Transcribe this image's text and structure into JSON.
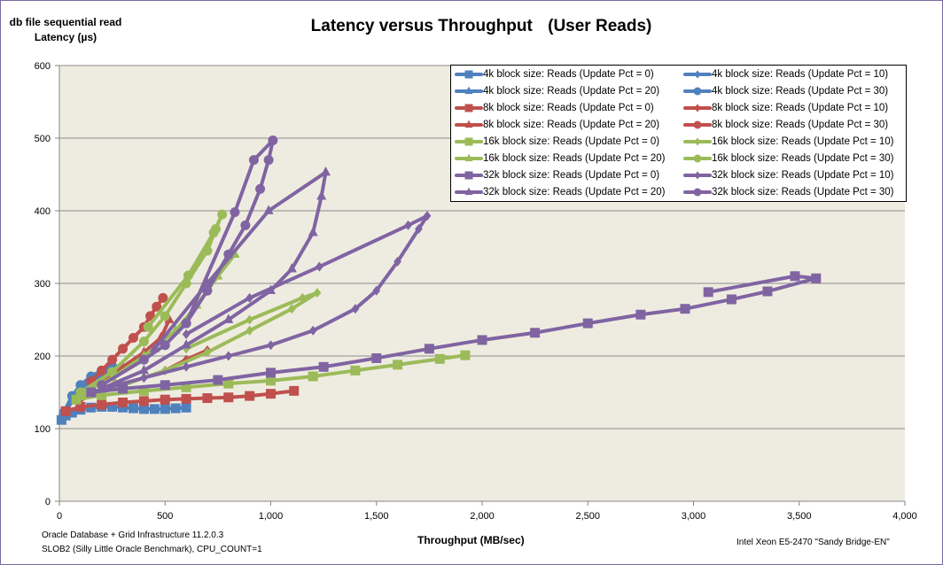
{
  "chart_data": {
    "type": "line",
    "title": "Latency versus Throughput",
    "subtitle": "(User Reads)",
    "ylabel_line1": "db file sequential read",
    "ylabel_line2": "Latency (µs)",
    "xlabel": "Throughput (MB/sec)",
    "xlim": [
      0,
      4000
    ],
    "ylim": [
      0,
      600
    ],
    "xticks": [
      "0",
      "500",
      "1,000",
      "1,500",
      "2,000",
      "2,500",
      "3,000",
      "3,500",
      "4,000"
    ],
    "yticks": [
      "0",
      "100",
      "200",
      "300",
      "400",
      "500",
      "600"
    ],
    "grid": "horizontal",
    "legend_position": "top-right",
    "plot_background": "#eeece1",
    "series": [
      {
        "name": "4k block size: Reads (Update Pct = 0)",
        "color": "#4f81bd",
        "marker": "square",
        "points": [
          [
            10,
            112
          ],
          [
            30,
            118
          ],
          [
            60,
            122
          ],
          [
            100,
            126
          ],
          [
            150,
            129
          ],
          [
            200,
            130
          ],
          [
            250,
            130
          ],
          [
            300,
            129
          ],
          [
            350,
            128
          ],
          [
            400,
            127
          ],
          [
            450,
            127
          ],
          [
            500,
            127
          ],
          [
            550,
            128
          ],
          [
            600,
            129
          ]
        ]
      },
      {
        "name": "4k block size: Reads (Update Pct = 10)",
        "color": "#4f81bd",
        "marker": "diamond",
        "points": [
          [
            20,
            120
          ],
          [
            60,
            140
          ],
          [
            100,
            155
          ],
          [
            150,
            168
          ],
          [
            200,
            176
          ],
          [
            250,
            180
          ]
        ]
      },
      {
        "name": "4k block size: Reads (Update Pct = 20)",
        "color": "#4f81bd",
        "marker": "triangle",
        "points": [
          [
            20,
            118
          ],
          [
            60,
            138
          ],
          [
            100,
            150
          ],
          [
            150,
            163
          ],
          [
            200,
            172
          ],
          [
            240,
            178
          ]
        ]
      },
      {
        "name": "4k block size: Reads (Update Pct = 30)",
        "color": "#4f81bd",
        "marker": "circle",
        "points": [
          [
            20,
            122
          ],
          [
            60,
            145
          ],
          [
            100,
            160
          ],
          [
            150,
            172
          ],
          [
            200,
            180
          ],
          [
            250,
            186
          ]
        ]
      },
      {
        "name": "8k block size: Reads (Update Pct = 0)",
        "color": "#c0504d",
        "marker": "square",
        "points": [
          [
            30,
            124
          ],
          [
            100,
            130
          ],
          [
            200,
            133
          ],
          [
            300,
            136
          ],
          [
            400,
            138
          ],
          [
            500,
            140
          ],
          [
            600,
            141
          ],
          [
            700,
            142
          ],
          [
            800,
            143
          ],
          [
            900,
            145
          ],
          [
            1000,
            148
          ],
          [
            1110,
            152
          ]
        ]
      },
      {
        "name": "8k block size: Reads (Update Pct = 10)",
        "color": "#c0504d",
        "marker": "diamond",
        "points": [
          [
            100,
            140
          ],
          [
            200,
            150
          ],
          [
            300,
            160
          ],
          [
            400,
            170
          ],
          [
            500,
            180
          ],
          [
            600,
            195
          ],
          [
            700,
            208
          ]
        ]
      },
      {
        "name": "8k block size: Reads (Update Pct = 20)",
        "color": "#c0504d",
        "marker": "triangle",
        "points": [
          [
            100,
            145
          ],
          [
            200,
            165
          ],
          [
            300,
            185
          ],
          [
            400,
            205
          ],
          [
            480,
            225
          ],
          [
            520,
            250
          ]
        ]
      },
      {
        "name": "8k block size: Reads (Update Pct = 30)",
        "color": "#c0504d",
        "marker": "circle",
        "points": [
          [
            150,
            165
          ],
          [
            200,
            180
          ],
          [
            250,
            195
          ],
          [
            300,
            210
          ],
          [
            350,
            225
          ],
          [
            400,
            240
          ],
          [
            430,
            255
          ],
          [
            460,
            268
          ],
          [
            490,
            280
          ]
        ]
      },
      {
        "name": "16k block size: Reads (Update Pct = 0)",
        "color": "#9bbb59",
        "marker": "square",
        "points": [
          [
            80,
            140
          ],
          [
            200,
            146
          ],
          [
            400,
            152
          ],
          [
            600,
            157
          ],
          [
            800,
            162
          ],
          [
            1000,
            166
          ],
          [
            1200,
            172
          ],
          [
            1400,
            180
          ],
          [
            1600,
            188
          ],
          [
            1800,
            196
          ],
          [
            1920,
            201
          ]
        ]
      },
      {
        "name": "16k block size: Reads (Update Pct = 10)",
        "color": "#9bbb59",
        "marker": "diamond",
        "points": [
          [
            100,
            145
          ],
          [
            300,
            160
          ],
          [
            500,
            180
          ],
          [
            700,
            205
          ],
          [
            900,
            235
          ],
          [
            1100,
            265
          ],
          [
            1220,
            287
          ],
          [
            1150,
            280
          ],
          [
            900,
            250
          ],
          [
            600,
            210
          ]
        ]
      },
      {
        "name": "16k block size: Reads (Update Pct = 20)",
        "color": "#9bbb59",
        "marker": "triangle",
        "points": [
          [
            100,
            148
          ],
          [
            250,
            170
          ],
          [
            400,
            200
          ],
          [
            550,
            235
          ],
          [
            650,
            270
          ],
          [
            750,
            310
          ],
          [
            830,
            340
          ]
        ]
      },
      {
        "name": "16k block size: Reads (Update Pct = 30)",
        "color": "#9bbb59",
        "marker": "circle",
        "points": [
          [
            100,
            150
          ],
          [
            250,
            178
          ],
          [
            400,
            220
          ],
          [
            500,
            255
          ],
          [
            600,
            300
          ],
          [
            700,
            345
          ],
          [
            740,
            375
          ],
          [
            770,
            395
          ],
          [
            730,
            370
          ],
          [
            610,
            311
          ],
          [
            420,
            240
          ]
        ]
      },
      {
        "name": "32k block size: Reads (Update Pct = 0)",
        "color": "#8064a2",
        "marker": "square",
        "points": [
          [
            150,
            150
          ],
          [
            300,
            155
          ],
          [
            500,
            160
          ],
          [
            750,
            167
          ],
          [
            1000,
            177
          ],
          [
            1250,
            185
          ],
          [
            1500,
            197
          ],
          [
            1750,
            210
          ],
          [
            2000,
            222
          ],
          [
            2250,
            232
          ],
          [
            2500,
            245
          ],
          [
            2750,
            257
          ],
          [
            2960,
            265
          ],
          [
            3180,
            278
          ],
          [
            3350,
            289
          ],
          [
            3580,
            307
          ],
          [
            3480,
            310
          ],
          [
            3070,
            288
          ]
        ]
      },
      {
        "name": "32k block size: Reads (Update Pct = 10)",
        "color": "#8064a2",
        "marker": "diamond",
        "points": [
          [
            150,
            150
          ],
          [
            400,
            170
          ],
          [
            600,
            185
          ],
          [
            800,
            200
          ],
          [
            1000,
            215
          ],
          [
            1200,
            235
          ],
          [
            1400,
            265
          ],
          [
            1500,
            290
          ],
          [
            1600,
            330
          ],
          [
            1700,
            375
          ],
          [
            1740,
            393
          ],
          [
            1650,
            380
          ],
          [
            1230,
            323
          ],
          [
            900,
            280
          ],
          [
            600,
            230
          ]
        ]
      },
      {
        "name": "32k block size: Reads (Update Pct = 20)",
        "color": "#8064a2",
        "marker": "triangle",
        "points": [
          [
            200,
            155
          ],
          [
            400,
            180
          ],
          [
            600,
            215
          ],
          [
            800,
            250
          ],
          [
            1000,
            290
          ],
          [
            1100,
            320
          ],
          [
            1200,
            370
          ],
          [
            1240,
            420
          ],
          [
            1260,
            453
          ],
          [
            990,
            400
          ],
          [
            700,
            300
          ],
          [
            450,
            210
          ]
        ]
      },
      {
        "name": "32k block size: Reads (Update Pct = 30)",
        "color": "#8064a2",
        "marker": "circle",
        "points": [
          [
            200,
            160
          ],
          [
            400,
            195
          ],
          [
            500,
            215
          ],
          [
            600,
            245
          ],
          [
            700,
            290
          ],
          [
            800,
            340
          ],
          [
            880,
            380
          ],
          [
            950,
            430
          ],
          [
            990,
            470
          ],
          [
            1010,
            497
          ],
          [
            920,
            470
          ],
          [
            830,
            398
          ],
          [
            600,
            245
          ]
        ]
      }
    ]
  },
  "footer": {
    "left_line1": "Oracle Database + Grid Infrastructure 11.2.0.3",
    "left_line2": "SLOB2 (Silly Little Oracle Benchmark), CPU_COUNT=1",
    "right": "Intel Xeon E5-2470 \"Sandy Bridge-EN\""
  }
}
